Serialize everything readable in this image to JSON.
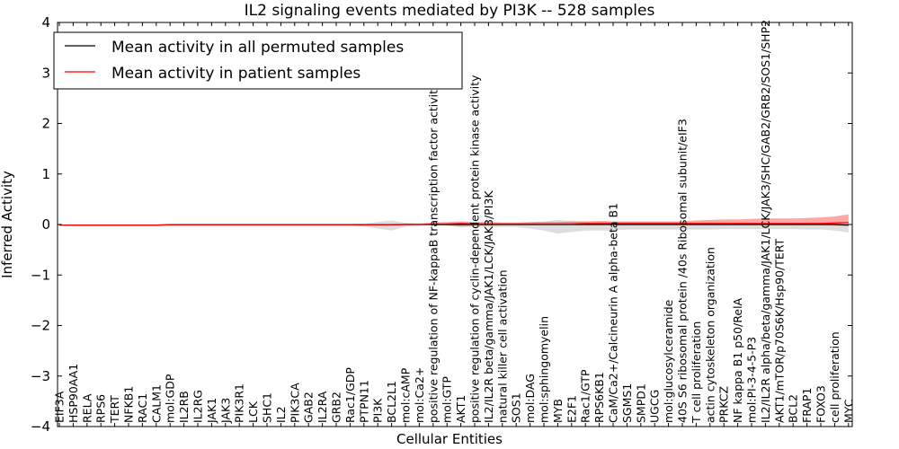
{
  "chart_data": {
    "type": "line",
    "title": "IL2 signaling events mediated by PI3K -- 528 samples",
    "xlabel": "Cellular Entities",
    "ylabel": "Inferred Activity",
    "ylim": [
      -4,
      4
    ],
    "yticks": [
      -4,
      -3,
      -2,
      -1,
      0,
      1,
      2,
      3,
      4
    ],
    "ytick_labels": [
      "−4",
      "−3",
      "−2",
      "−1",
      "0",
      "1",
      "2",
      "3",
      "4"
    ],
    "categories": [
      "EIF3A",
      "HSP90AA1",
      "RELA",
      "RPS6",
      "TERT",
      "NFKB1",
      "RAC1",
      "CALM1",
      "mol:GDP",
      "IL2RB",
      "IL2RG",
      "JAK1",
      "JAK3",
      "PIK3R1",
      "LCK",
      "SHC1",
      "IL2",
      "PIK3CA",
      "GAB2",
      "IL2RA",
      "GRB2",
      "Rac1/GDP",
      "PTPN11",
      "PI3K",
      "BCL2L1",
      "mol:cAMP",
      "mol:Ca2+",
      "positive regulation of NF-kappaB transcription factor activity",
      "mol:GTP",
      "AKT1",
      "positive regulation of cyclin-dependent protein kinase activity",
      "IL2/IL2R beta/gamma/JAK1/LCK/JAK3/PI3K",
      "natural killer cell activation",
      "SOS1",
      "mol:DAG",
      "mol:sphingomyelin",
      "MYB",
      "E2F1",
      "Rac1/GTP",
      "RPS6KB1",
      "CaM/Ca2+/Calcineurin A alpha-beta B1",
      "SGMS1",
      "SMPD1",
      "UGCG",
      "mol:glucosylceramide",
      "40S S6 ribosomal protein /40s Ribosomal subunit/eIF3",
      "T cell proliferation",
      "actin cytoskeleton organization",
      "PRKCZ",
      "NF kappa B1 p50/RelA",
      "mol:PI-3-4-5-P3",
      "IL2/IL2R alpha/beta/gamma/JAK1/LCK/JAK3/SHC/GAB2/GRB2/SOS1/SHP2",
      "AKT1/mTOR/p70S6K/Hsp90/TERT",
      "BCL2",
      "FRAP1",
      "FOXO3",
      "cell proliferation",
      "MYC"
    ],
    "series": [
      {
        "name": "Mean activity in all permuted samples",
        "color": "#000000",
        "values": [
          -0.01,
          -0.01,
          -0.01,
          -0.01,
          -0.01,
          -0.01,
          -0.01,
          -0.01,
          -0.005,
          -0.005,
          -0.005,
          -0.005,
          -0.005,
          -0.005,
          -0.005,
          -0.005,
          -0.005,
          -0.005,
          -0.005,
          -0.005,
          -0.005,
          -0.005,
          -0.005,
          -0.005,
          -0.005,
          0,
          0,
          0,
          0,
          0,
          0,
          0,
          0,
          0,
          0,
          0,
          0,
          0,
          0,
          0,
          0,
          0,
          0,
          0,
          0,
          0,
          0,
          0,
          0,
          0,
          0,
          0,
          0,
          0,
          0,
          0,
          0,
          -0.01
        ],
        "band_upper": [
          0,
          0,
          0,
          0,
          0,
          0,
          0,
          0,
          0.01,
          0.01,
          0.01,
          0.01,
          0.01,
          0.01,
          0.01,
          0.01,
          0.01,
          0.01,
          0.01,
          0.01,
          0.01,
          0.01,
          0.02,
          0.05,
          0.08,
          0.03,
          0.02,
          0.02,
          0.02,
          0.04,
          0.03,
          0.04,
          0.03,
          0.03,
          0.04,
          0.06,
          0.09,
          0.07,
          0.06,
          0.06,
          0.06,
          0.05,
          0.05,
          0.05,
          0.05,
          0.05,
          0.04,
          0.04,
          0.04,
          0.04,
          0.04,
          0.04,
          0.04,
          0.04,
          0.04,
          0.04,
          0.05,
          0.05
        ],
        "band_lower": [
          -0.02,
          -0.02,
          -0.02,
          -0.02,
          -0.02,
          -0.02,
          -0.02,
          -0.02,
          -0.02,
          -0.02,
          -0.02,
          -0.02,
          -0.02,
          -0.02,
          -0.02,
          -0.02,
          -0.02,
          -0.02,
          -0.02,
          -0.02,
          -0.02,
          -0.02,
          -0.04,
          -0.08,
          -0.12,
          -0.04,
          -0.02,
          -0.02,
          -0.02,
          -0.06,
          -0.05,
          -0.06,
          -0.05,
          -0.05,
          -0.08,
          -0.12,
          -0.18,
          -0.15,
          -0.12,
          -0.12,
          -0.12,
          -0.1,
          -0.1,
          -0.1,
          -0.1,
          -0.1,
          -0.1,
          -0.1,
          -0.09,
          -0.09,
          -0.09,
          -0.09,
          -0.09,
          -0.09,
          -0.1,
          -0.1,
          -0.12,
          -0.16
        ]
      },
      {
        "name": "Mean activity in patient samples",
        "color": "#ff0000",
        "values": [
          -0.01,
          -0.01,
          -0.01,
          -0.01,
          -0.01,
          -0.01,
          -0.01,
          -0.01,
          -0.005,
          -0.005,
          -0.005,
          -0.005,
          -0.005,
          -0.005,
          -0.005,
          -0.005,
          -0.005,
          -0.005,
          -0.005,
          -0.005,
          -0.005,
          -0.005,
          -0.005,
          -0.005,
          -0.005,
          0,
          0,
          0.01,
          0.01,
          0.02,
          0.01,
          0.01,
          0.01,
          0.01,
          0.01,
          0.01,
          0.01,
          0.01,
          0.02,
          0.02,
          0.02,
          0.02,
          0.02,
          0.02,
          0.02,
          0.02,
          0.02,
          0.02,
          0.02,
          0.02,
          0.02,
          0.02,
          0.02,
          0.02,
          0.02,
          0.02,
          0.03,
          0.04
        ],
        "band_upper": [
          0,
          0,
          0,
          0,
          0,
          0,
          0,
          0,
          0.01,
          0.01,
          0.01,
          0.01,
          0.01,
          0.01,
          0.01,
          0.01,
          0.01,
          0.01,
          0.01,
          0.01,
          0.01,
          0.01,
          0.01,
          0.01,
          0.01,
          0.02,
          0.02,
          0.04,
          0.05,
          0.06,
          0.05,
          0.05,
          0.04,
          0.04,
          0.05,
          0.05,
          0.05,
          0.06,
          0.06,
          0.07,
          0.06,
          0.06,
          0.06,
          0.06,
          0.06,
          0.06,
          0.08,
          0.09,
          0.1,
          0.1,
          0.11,
          0.12,
          0.12,
          0.12,
          0.13,
          0.14,
          0.16,
          0.2
        ],
        "band_lower": [
          -0.02,
          -0.02,
          -0.02,
          -0.02,
          -0.02,
          -0.02,
          -0.02,
          -0.02,
          -0.02,
          -0.02,
          -0.02,
          -0.02,
          -0.02,
          -0.02,
          -0.02,
          -0.02,
          -0.02,
          -0.02,
          -0.02,
          -0.02,
          -0.02,
          -0.02,
          -0.02,
          -0.02,
          -0.02,
          -0.01,
          -0.01,
          -0.01,
          -0.02,
          -0.03,
          -0.02,
          -0.02,
          -0.01,
          -0.01,
          -0.01,
          -0.01,
          -0.01,
          -0.01,
          -0.01,
          -0.01,
          -0.01,
          -0.01,
          -0.01,
          -0.01,
          -0.01,
          -0.01,
          -0.01,
          -0.01,
          -0.01,
          -0.01,
          -0.01,
          -0.01,
          -0.01,
          -0.01,
          -0.01,
          -0.01,
          -0.02,
          -0.03
        ]
      }
    ],
    "legend_position": "top-left",
    "grid": false
  }
}
